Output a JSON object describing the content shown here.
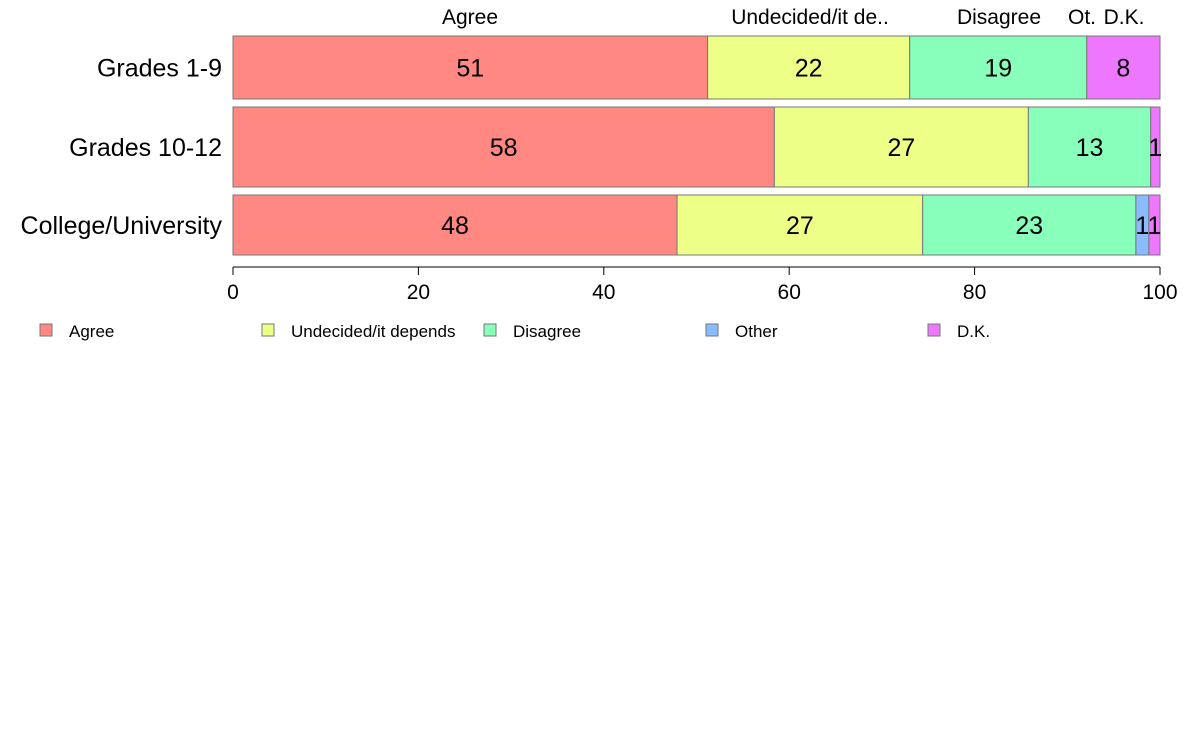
{
  "chart_data": {
    "type": "bar",
    "orientation": "horizontal",
    "stacked": true,
    "categories": [
      "Grades 1-9",
      "Grades 10-12",
      "College/University"
    ],
    "series": [
      {
        "name": "Agree",
        "color": "#ff8882",
        "values": [
          51.2,
          58.4,
          47.9
        ],
        "labels": [
          "51",
          "58",
          "48"
        ]
      },
      {
        "name": "Undecided/it depends",
        "color": "#eeff88",
        "values": [
          21.8,
          27.4,
          26.5
        ],
        "labels": [
          "22",
          "27",
          "27"
        ]
      },
      {
        "name": "Disagree",
        "color": "#88ffbb",
        "values": [
          19.1,
          13.2,
          23.0
        ],
        "labels": [
          "19",
          "13",
          "23"
        ]
      },
      {
        "name": "Other",
        "color": "#88bbff",
        "values": [
          0,
          0,
          1.4
        ],
        "labels": [
          "",
          "",
          "1"
        ]
      },
      {
        "name": "D.K.",
        "color": "#ee77ff",
        "values": [
          7.9,
          1.0,
          1.2
        ],
        "labels": [
          "8",
          "1",
          "1"
        ]
      }
    ],
    "top_labels": [
      "Agree",
      "Undecided/it de..",
      "Disagree",
      "Ot.",
      "D.K."
    ],
    "xlim": [
      0,
      100
    ],
    "x_ticks": [
      0,
      20,
      40,
      60,
      80,
      100
    ],
    "grid": false,
    "legend_position": "bottom"
  }
}
